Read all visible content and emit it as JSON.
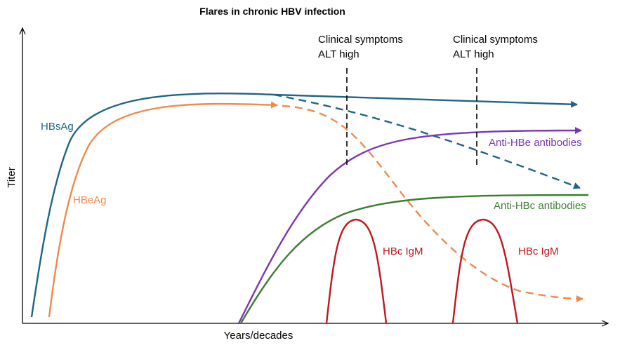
{
  "title": "Flares in chronic HBV infection",
  "axes": {
    "x_label": "Years/decades",
    "y_label": "Titer"
  },
  "events": [
    {
      "line1": "Clinical symptoms",
      "line2": "ALT high"
    },
    {
      "line1": "Clinical symptoms",
      "line2": "ALT high"
    }
  ],
  "series": {
    "hbsag": {
      "label": "HBsAg",
      "color": "#1f6585"
    },
    "hbeag": {
      "label": "HBeAg",
      "color": "#ee8a4b"
    },
    "anti_hbe": {
      "label": "Anti-HBe antibodies",
      "color": "#7b35b6"
    },
    "anti_hbc": {
      "label": "Anti-HBc antibodies",
      "color": "#3b7d2f"
    },
    "hbc_igm": [
      {
        "label": "HBc IgM",
        "color": "#c0171c"
      },
      {
        "label": "HBc IgM",
        "color": "#c0171c"
      }
    ]
  }
}
